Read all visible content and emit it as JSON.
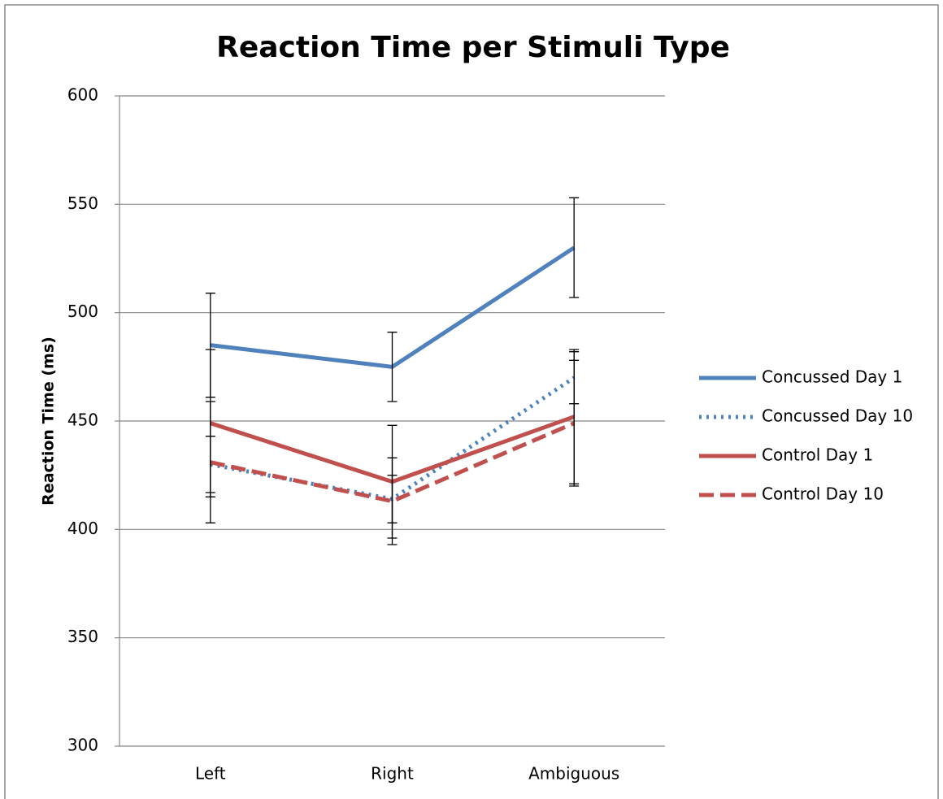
{
  "chart_data": {
    "type": "line",
    "title": "Reaction Time per Stimuli Type",
    "y_label": "Reaction Time (ms)",
    "categories": [
      "Left",
      "Right",
      "Ambiguous"
    ],
    "ylim": [
      300,
      600
    ],
    "yticks": [
      300,
      350,
      400,
      450,
      500,
      550,
      600
    ],
    "grid": true,
    "legend": "right",
    "series": [
      {
        "name": "Concussed Day 1",
        "color": "#4f81bd",
        "style": "solid",
        "values": [
          485,
          475,
          530
        ],
        "errors": [
          24,
          16,
          23
        ]
      },
      {
        "name": "Concussed Day 10",
        "color": "#4f81bd",
        "style": "dotted",
        "values": [
          430,
          414,
          470
        ],
        "errors": [
          13,
          11,
          12
        ]
      },
      {
        "name": "Control Day 1",
        "color": "#c0504d",
        "style": "solid",
        "values": [
          449,
          422,
          452
        ],
        "errors": [
          34,
          26,
          31
        ]
      },
      {
        "name": "Control Day 10",
        "color": "#c0504d",
        "style": "dashed",
        "values": [
          431,
          413,
          449
        ],
        "errors": [
          28,
          20,
          29
        ]
      }
    ]
  }
}
